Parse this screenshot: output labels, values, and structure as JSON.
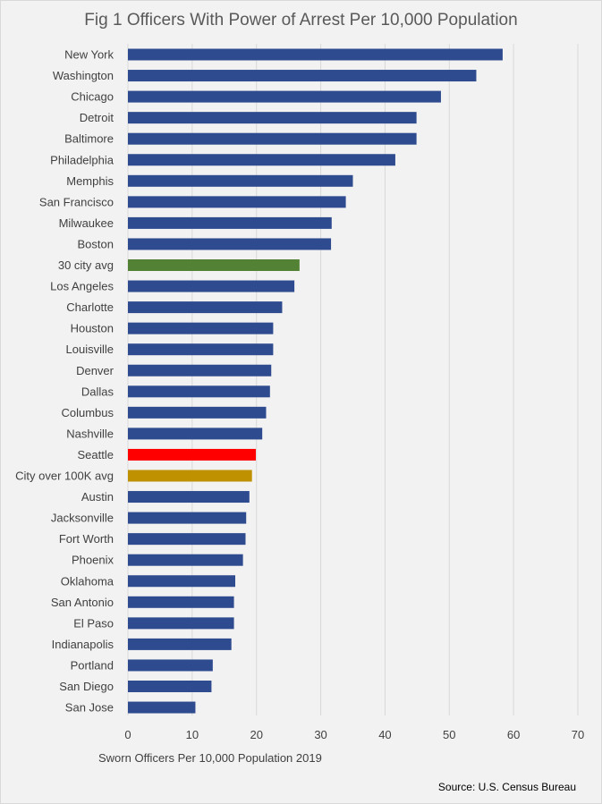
{
  "chart_data": {
    "type": "bar",
    "orientation": "horizontal",
    "title": "Fig 1 Officers With Power of Arrest Per 10,000 Population",
    "xlabel": "Sworn  Officers Per 10,000 Population 2019",
    "ylabel": "",
    "xlim": [
      0,
      70
    ],
    "xticks": [
      0,
      10,
      20,
      30,
      40,
      50,
      60,
      70
    ],
    "grid": "vertical",
    "categories": [
      "New York",
      "Washington",
      "Chicago",
      "Detroit",
      "Baltimore",
      "Philadelphia",
      "Memphis",
      "San Francisco",
      "Milwaukee",
      "Boston",
      "30 city avg",
      "Los Angeles",
      "Charlotte",
      "Houston",
      "Louisville",
      "Denver",
      "Dallas",
      "Columbus",
      "Nashville",
      "Seattle",
      "City over 100K avg",
      "Austin",
      "Jacksonville",
      "Fort Worth",
      "Phoenix",
      "Oklahoma",
      "San Antonio",
      "El Paso",
      "Indianapolis",
      "Portland",
      "San Diego",
      "San Jose"
    ],
    "values": [
      58.3,
      54.2,
      48.7,
      44.9,
      44.9,
      41.6,
      35.0,
      33.9,
      31.7,
      31.6,
      26.7,
      25.9,
      24.0,
      22.6,
      22.6,
      22.3,
      22.1,
      21.5,
      20.9,
      19.9,
      19.3,
      18.9,
      18.4,
      18.3,
      17.9,
      16.7,
      16.5,
      16.5,
      16.1,
      13.2,
      13.0,
      10.5
    ],
    "colors": {
      "default": "#2f4b8f",
      "30 city avg": "#548235",
      "Seattle": "#ff0000",
      "City over 100K avg": "#bf9000"
    },
    "gridline_color": "#d9d9d9"
  },
  "source": "Source: U.S. Census Bureau"
}
